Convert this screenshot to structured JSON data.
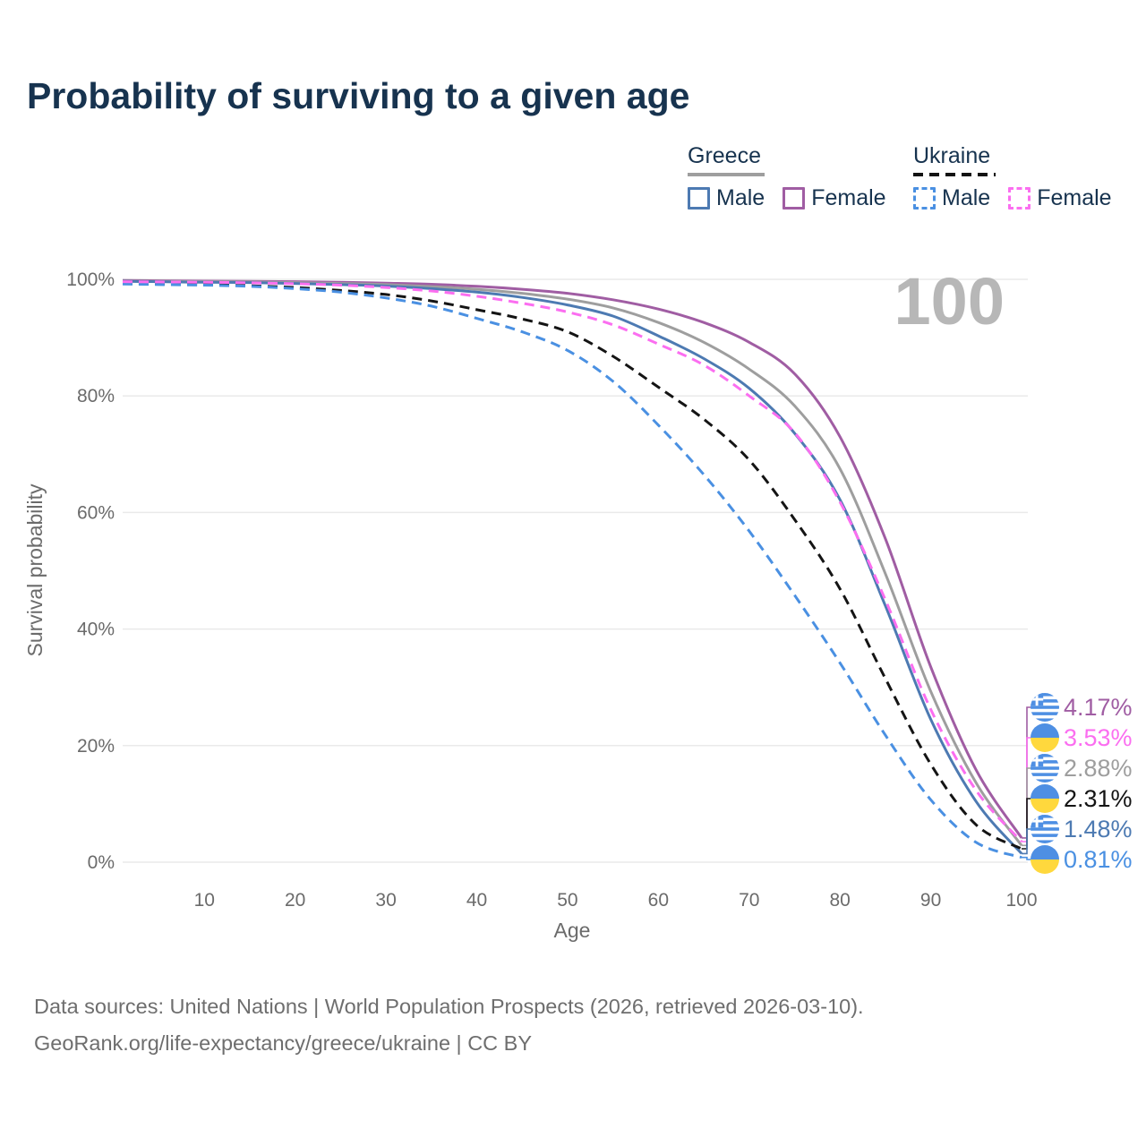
{
  "title": "Probability of surviving to a given age",
  "colors": {
    "title_text": "#17334f",
    "axis_text": "#6b6b6b",
    "gridline": "#eaeaea",
    "watermark": "#b7b7b7",
    "greece_male": "#4d7ab2",
    "greece_female": "#a05da3",
    "greece_total": "#9e9e9e",
    "ukraine_male": "#4a90e2",
    "ukraine_female": "#fb6ef0",
    "ukraine_total": "#141414",
    "flag_blue": "#4e8fe3",
    "flag_yellow": "#ffd83d"
  },
  "legend": {
    "groups": [
      {
        "country": "Greece",
        "style": "solid",
        "items": [
          {
            "label": "Male",
            "color": "#4d7ab2"
          },
          {
            "label": "Female",
            "color": "#a05da3"
          }
        ]
      },
      {
        "country": "Ukraine",
        "style": "dashed",
        "items": [
          {
            "label": "Male",
            "color": "#4a90e2"
          },
          {
            "label": "Female",
            "color": "#fb6ef0"
          }
        ]
      }
    ]
  },
  "chart_data": {
    "type": "line",
    "title": "Probability of surviving to a given age",
    "xlabel": "Age",
    "ylabel": "Survival probability",
    "xlim": [
      1,
      100
    ],
    "ylim": [
      0,
      100
    ],
    "grid": "horizontal",
    "watermark": "100",
    "x_ticks": [
      10,
      20,
      30,
      40,
      50,
      60,
      70,
      80,
      90,
      100
    ],
    "y_ticks": [
      {
        "value": 100,
        "label": "100%"
      },
      {
        "value": 80,
        "label": "80%"
      },
      {
        "value": 60,
        "label": "60%"
      },
      {
        "value": 40,
        "label": "40%"
      },
      {
        "value": 20,
        "label": "20%"
      },
      {
        "value": 0,
        "label": "0%"
      }
    ],
    "series": [
      {
        "id": "greece-female",
        "name": "Greece Female",
        "flag": "greece",
        "line": "solid",
        "color": "#a05da3",
        "end_label": "4.17%",
        "points": [
          [
            1,
            99.8
          ],
          [
            5,
            99.75
          ],
          [
            10,
            99.7
          ],
          [
            15,
            99.65
          ],
          [
            20,
            99.6
          ],
          [
            25,
            99.5
          ],
          [
            30,
            99.35
          ],
          [
            35,
            99.15
          ],
          [
            40,
            98.8
          ],
          [
            45,
            98.3
          ],
          [
            50,
            97.6
          ],
          [
            55,
            96.5
          ],
          [
            60,
            94.9
          ],
          [
            65,
            92.6
          ],
          [
            70,
            89.2
          ],
          [
            75,
            83.8
          ],
          [
            80,
            73.0
          ],
          [
            85,
            55.5
          ],
          [
            90,
            33.5
          ],
          [
            95,
            15.8
          ],
          [
            100,
            4.17
          ]
        ]
      },
      {
        "id": "ukraine-female",
        "name": "Ukraine Female",
        "flag": "ukraine",
        "line": "dashed",
        "color": "#fb6ef0",
        "end_label": "3.53%",
        "points": [
          [
            1,
            99.6
          ],
          [
            5,
            99.55
          ],
          [
            10,
            99.5
          ],
          [
            15,
            99.4
          ],
          [
            20,
            99.25
          ],
          [
            25,
            99.0
          ],
          [
            30,
            98.6
          ],
          [
            35,
            98.0
          ],
          [
            40,
            97.1
          ],
          [
            45,
            95.9
          ],
          [
            50,
            94.4
          ],
          [
            55,
            92.2
          ],
          [
            60,
            88.9
          ],
          [
            65,
            85.3
          ],
          [
            70,
            80.0
          ],
          [
            75,
            73.7
          ],
          [
            80,
            61.8
          ],
          [
            85,
            45.0
          ],
          [
            90,
            26.2
          ],
          [
            95,
            12.3
          ],
          [
            100,
            3.53
          ]
        ]
      },
      {
        "id": "greece-total",
        "name": "Greece",
        "flag": "greece",
        "line": "solid",
        "color": "#9e9e9e",
        "end_label": "2.88%",
        "points": [
          [
            1,
            99.7
          ],
          [
            5,
            99.65
          ],
          [
            10,
            99.6
          ],
          [
            15,
            99.55
          ],
          [
            20,
            99.45
          ],
          [
            25,
            99.3
          ],
          [
            30,
            99.1
          ],
          [
            35,
            98.75
          ],
          [
            40,
            98.3
          ],
          [
            45,
            97.6
          ],
          [
            50,
            96.6
          ],
          [
            55,
            95.1
          ],
          [
            60,
            92.6
          ],
          [
            65,
            89.2
          ],
          [
            70,
            84.6
          ],
          [
            75,
            78.3
          ],
          [
            80,
            67.5
          ],
          [
            85,
            49.5
          ],
          [
            90,
            29.3
          ],
          [
            95,
            13.6
          ],
          [
            100,
            2.88
          ]
        ]
      },
      {
        "id": "ukraine-total",
        "name": "Ukraine",
        "flag": "ukraine",
        "line": "dashed",
        "color": "#141414",
        "end_label": "2.31%",
        "points": [
          [
            1,
            99.3
          ],
          [
            5,
            99.2
          ],
          [
            10,
            99.1
          ],
          [
            15,
            98.9
          ],
          [
            20,
            98.6
          ],
          [
            25,
            98.1
          ],
          [
            30,
            97.4
          ],
          [
            35,
            96.3
          ],
          [
            40,
            94.8
          ],
          [
            45,
            93.2
          ],
          [
            50,
            91.0
          ],
          [
            55,
            86.8
          ],
          [
            60,
            81.5
          ],
          [
            65,
            76.0
          ],
          [
            70,
            69.0
          ],
          [
            75,
            58.8
          ],
          [
            80,
            46.9
          ],
          [
            85,
            31.5
          ],
          [
            90,
            16.8
          ],
          [
            95,
            6.4
          ],
          [
            100,
            2.31
          ]
        ]
      },
      {
        "id": "greece-male",
        "name": "Greece Male",
        "flag": "greece",
        "line": "solid",
        "color": "#4d7ab2",
        "end_label": "1.48%",
        "points": [
          [
            1,
            99.65
          ],
          [
            5,
            99.6
          ],
          [
            10,
            99.5
          ],
          [
            15,
            99.45
          ],
          [
            20,
            99.3
          ],
          [
            25,
            99.1
          ],
          [
            30,
            98.85
          ],
          [
            35,
            98.4
          ],
          [
            40,
            97.8
          ],
          [
            45,
            96.9
          ],
          [
            50,
            95.6
          ],
          [
            55,
            93.7
          ],
          [
            60,
            90.3
          ],
          [
            65,
            86.4
          ],
          [
            70,
            81.3
          ],
          [
            75,
            73.6
          ],
          [
            80,
            62.2
          ],
          [
            85,
            44.0
          ],
          [
            90,
            24.5
          ],
          [
            95,
            10.4
          ],
          [
            100,
            1.48
          ]
        ]
      },
      {
        "id": "ukraine-male",
        "name": "Ukraine Male",
        "flag": "ukraine",
        "line": "dashed",
        "color": "#4a90e2",
        "end_label": "0.81%",
        "points": [
          [
            1,
            99.2
          ],
          [
            5,
            99.1
          ],
          [
            10,
            99.0
          ],
          [
            15,
            98.8
          ],
          [
            20,
            98.4
          ],
          [
            25,
            97.8
          ],
          [
            30,
            96.8
          ],
          [
            35,
            95.4
          ],
          [
            40,
            93.3
          ],
          [
            45,
            91.0
          ],
          [
            50,
            87.8
          ],
          [
            55,
            82.5
          ],
          [
            60,
            75.0
          ],
          [
            65,
            66.5
          ],
          [
            70,
            56.8
          ],
          [
            75,
            45.8
          ],
          [
            80,
            34.2
          ],
          [
            85,
            21.8
          ],
          [
            90,
            10.7
          ],
          [
            95,
            3.4
          ],
          [
            100,
            0.81
          ]
        ]
      }
    ]
  },
  "footer": {
    "line1": "Data sources: United Nations | World Population Prospects (2026, retrieved 2026-03-10).",
    "line2": "GeoRank.org/life-expectancy/greece/ukraine | CC BY"
  }
}
